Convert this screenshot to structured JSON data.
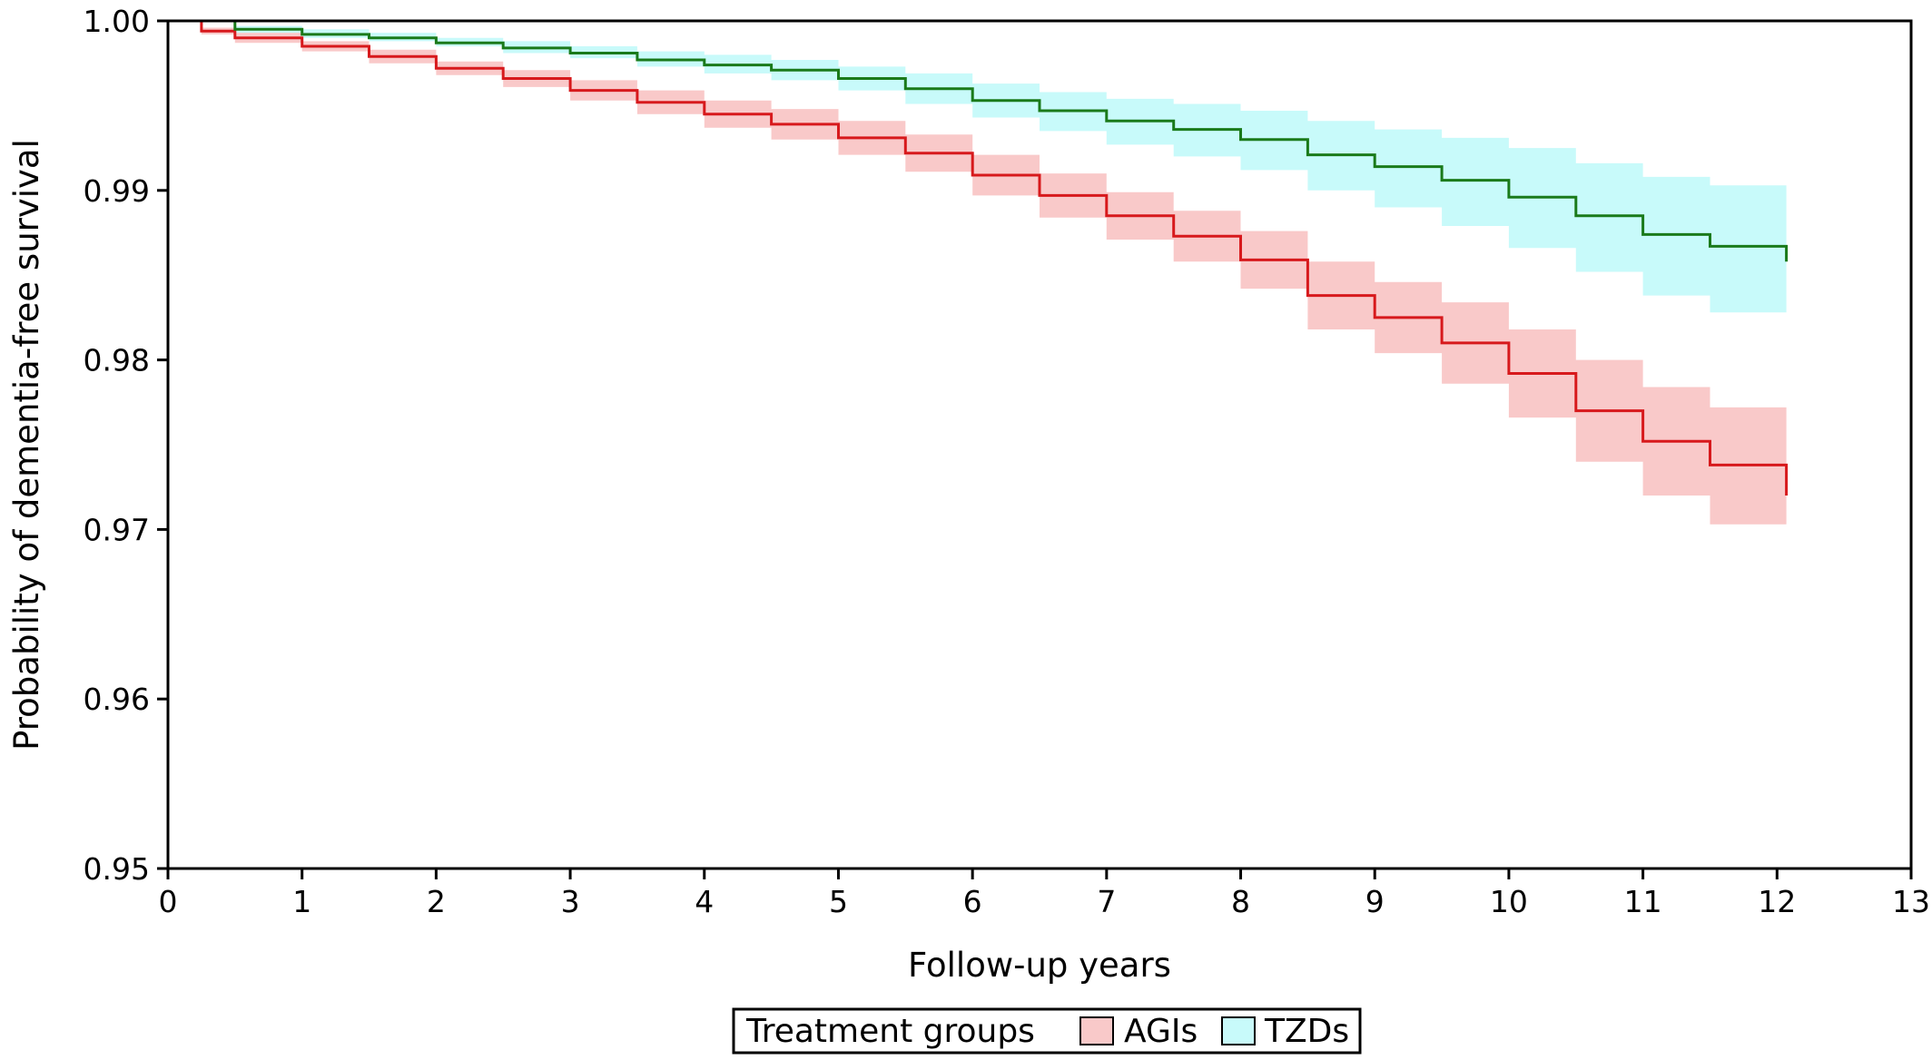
{
  "chart_data": {
    "type": "line",
    "xlabel": "Follow-up years",
    "ylabel": "Probability of dementia-free survival",
    "xlim": [
      0,
      13
    ],
    "ylim": [
      0.95,
      1.0
    ],
    "x_ticks": [
      "0",
      "1",
      "2",
      "3",
      "4",
      "5",
      "6",
      "7",
      "8",
      "9",
      "10",
      "11",
      "12",
      "13"
    ],
    "y_ticks": [
      "1.00",
      "0.99",
      "0.98",
      "0.97",
      "0.96",
      "0.95"
    ],
    "grid": false,
    "legend": {
      "title": "Treatment groups",
      "position": "bottom-center",
      "entries": [
        "AGIs",
        "TZDs"
      ]
    },
    "series": [
      {
        "name": "AGIs",
        "line_color": "#d7191c",
        "band_color": "#f9c9c9",
        "x": [
          0,
          0.25,
          0.5,
          1.0,
          1.5,
          2.0,
          2.5,
          3.0,
          3.5,
          4.0,
          4.5,
          5.0,
          5.5,
          6.0,
          6.5,
          7.0,
          7.5,
          8.0,
          8.5,
          9.0,
          9.5,
          10.0,
          10.5,
          11.0,
          11.5,
          12.07
        ],
        "y": [
          1.0,
          0.9994,
          0.999,
          0.9985,
          0.9979,
          0.9972,
          0.9966,
          0.9959,
          0.9952,
          0.9945,
          0.9939,
          0.9931,
          0.9922,
          0.9909,
          0.9897,
          0.9885,
          0.9873,
          0.9859,
          0.9838,
          0.9825,
          0.981,
          0.9792,
          0.977,
          0.9752,
          0.9738,
          0.972
        ],
        "lower": [
          1.0,
          0.9992,
          0.9987,
          0.9982,
          0.9975,
          0.9968,
          0.9961,
          0.9953,
          0.9945,
          0.9937,
          0.993,
          0.9921,
          0.9911,
          0.9897,
          0.9884,
          0.9871,
          0.9858,
          0.9842,
          0.9818,
          0.9804,
          0.9786,
          0.9766,
          0.974,
          0.972,
          0.9703,
          0.9686
        ],
        "upper": [
          1.0,
          0.9996,
          0.9993,
          0.9988,
          0.9983,
          0.9976,
          0.9971,
          0.9965,
          0.9959,
          0.9953,
          0.9948,
          0.9941,
          0.9933,
          0.9921,
          0.991,
          0.9899,
          0.9888,
          0.9876,
          0.9858,
          0.9846,
          0.9834,
          0.9818,
          0.98,
          0.9784,
          0.9772,
          0.9755
        ]
      },
      {
        "name": "TZDs",
        "line_color": "#1a7a1a",
        "band_color": "#c8fafa",
        "x": [
          0,
          0.5,
          1.0,
          1.5,
          2.0,
          2.5,
          3.0,
          3.5,
          4.0,
          4.5,
          5.0,
          5.5,
          6.0,
          6.5,
          7.0,
          7.5,
          8.0,
          8.5,
          9.0,
          9.5,
          10.0,
          10.5,
          11.0,
          11.5,
          12.07
        ],
        "y": [
          1.0,
          0.9995,
          0.9992,
          0.999,
          0.9987,
          0.9984,
          0.9981,
          0.9977,
          0.9974,
          0.9971,
          0.9966,
          0.996,
          0.9953,
          0.9947,
          0.9941,
          0.9936,
          0.993,
          0.9921,
          0.9914,
          0.9906,
          0.9896,
          0.9885,
          0.9874,
          0.9867,
          0.9858
        ],
        "lower": [
          1.0,
          0.9993,
          0.999,
          0.9988,
          0.9985,
          0.9981,
          0.9978,
          0.9973,
          0.9969,
          0.9965,
          0.9959,
          0.9951,
          0.9943,
          0.9935,
          0.9927,
          0.992,
          0.9912,
          0.99,
          0.989,
          0.9879,
          0.9866,
          0.9852,
          0.9838,
          0.9828,
          0.9817
        ],
        "upper": [
          1.0,
          0.9997,
          0.9995,
          0.9993,
          0.999,
          0.9988,
          0.9985,
          0.9982,
          0.998,
          0.9977,
          0.9973,
          0.9969,
          0.9963,
          0.9958,
          0.9954,
          0.9951,
          0.9947,
          0.9941,
          0.9936,
          0.9931,
          0.9925,
          0.9916,
          0.9908,
          0.9903,
          0.9899
        ]
      }
    ]
  }
}
